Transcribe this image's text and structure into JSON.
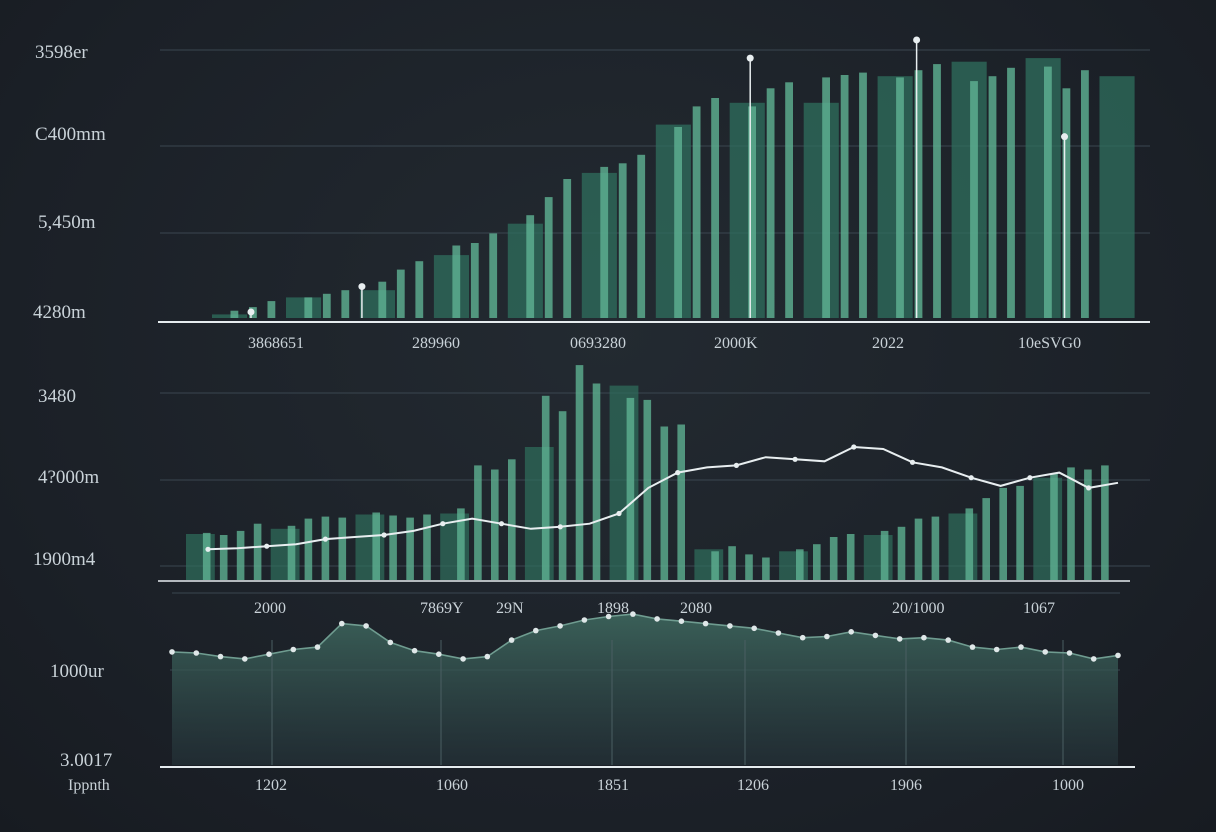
{
  "colors": {
    "background": "#1e242b",
    "bar_fill": "#2f6f5d",
    "bar_light": "#5fb394",
    "bar_dark": "#1f4a40",
    "line": "#e8eef0",
    "area_fill": "#33544d",
    "grid": "#3a4650",
    "axis": "#e6ecef",
    "text": "#c9d2d8"
  },
  "chart_data": [
    {
      "type": "bar",
      "panel": "top",
      "ytick_labels": [
        "3598er",
        "C400mm",
        "5,450m",
        "4280m"
      ],
      "xtick_labels": [
        "3868651",
        "289960",
        "0693280",
        "2000K",
        "2022",
        "10eSVG0"
      ],
      "grid": true,
      "values": [
        3,
        6,
        9,
        14,
        17,
        17,
        20,
        23,
        23,
        30,
        40,
        47,
        52,
        60,
        62,
        70,
        78,
        85,
        100,
        115,
        120,
        125,
        128,
        135,
        160,
        158,
        175,
        182,
        178,
        175,
        190,
        195,
        178,
        199,
        201,
        203,
        200,
        199,
        205,
        210,
        212,
        196,
        200,
        207,
        215,
        208,
        190,
        205,
        200
      ],
      "markers": [
        [
          2,
          5
        ],
        [
          8,
          26
        ],
        [
          29,
          215
        ],
        [
          38,
          230
        ],
        [
          46,
          150
        ]
      ]
    },
    {
      "type": "bar",
      "panel": "middle",
      "ytick_labels": [
        "3480",
        "4?000m",
        "1900m4"
      ],
      "xtick_labels": [
        "2000",
        "7869Y",
        "29N",
        "1898",
        "2080",
        "20/1000",
        "1067"
      ],
      "grid": true,
      "values": [
        45,
        46,
        44,
        48,
        55,
        50,
        53,
        60,
        62,
        61,
        64,
        66,
        63,
        61,
        64,
        65,
        70,
        112,
        108,
        118,
        130,
        180,
        165,
        210,
        192,
        190,
        178,
        176,
        150,
        152,
        30,
        28,
        33,
        25,
        22,
        28,
        30,
        35,
        42,
        45,
        44,
        48,
        52,
        60,
        62,
        65,
        70,
        80,
        90,
        92,
        100,
        104,
        110,
        108,
        112
      ],
      "line": [
        30,
        31,
        33,
        35,
        40,
        42,
        44,
        48,
        55,
        60,
        55,
        50,
        52,
        55,
        65,
        90,
        105,
        110,
        112,
        120,
        118,
        116,
        130,
        128,
        115,
        110,
        100,
        92,
        100,
        105,
        90,
        95
      ]
    },
    {
      "type": "area",
      "panel": "bottom",
      "ytick_labels": [
        "1000ur",
        "3.0017"
      ],
      "xtick_labels": [
        "1202",
        "1060",
        "1851",
        "1206",
        "1906",
        "1000"
      ],
      "xlabel": "Ippnth",
      "grid": true,
      "values": [
        96,
        95,
        92,
        90,
        94,
        98,
        100,
        120,
        118,
        104,
        97,
        94,
        90,
        92,
        106,
        114,
        118,
        123,
        126,
        128,
        124,
        122,
        120,
        118,
        116,
        112,
        108,
        109,
        113,
        110,
        107,
        108,
        106,
        100,
        98,
        100,
        96,
        95,
        90,
        93
      ]
    }
  ]
}
